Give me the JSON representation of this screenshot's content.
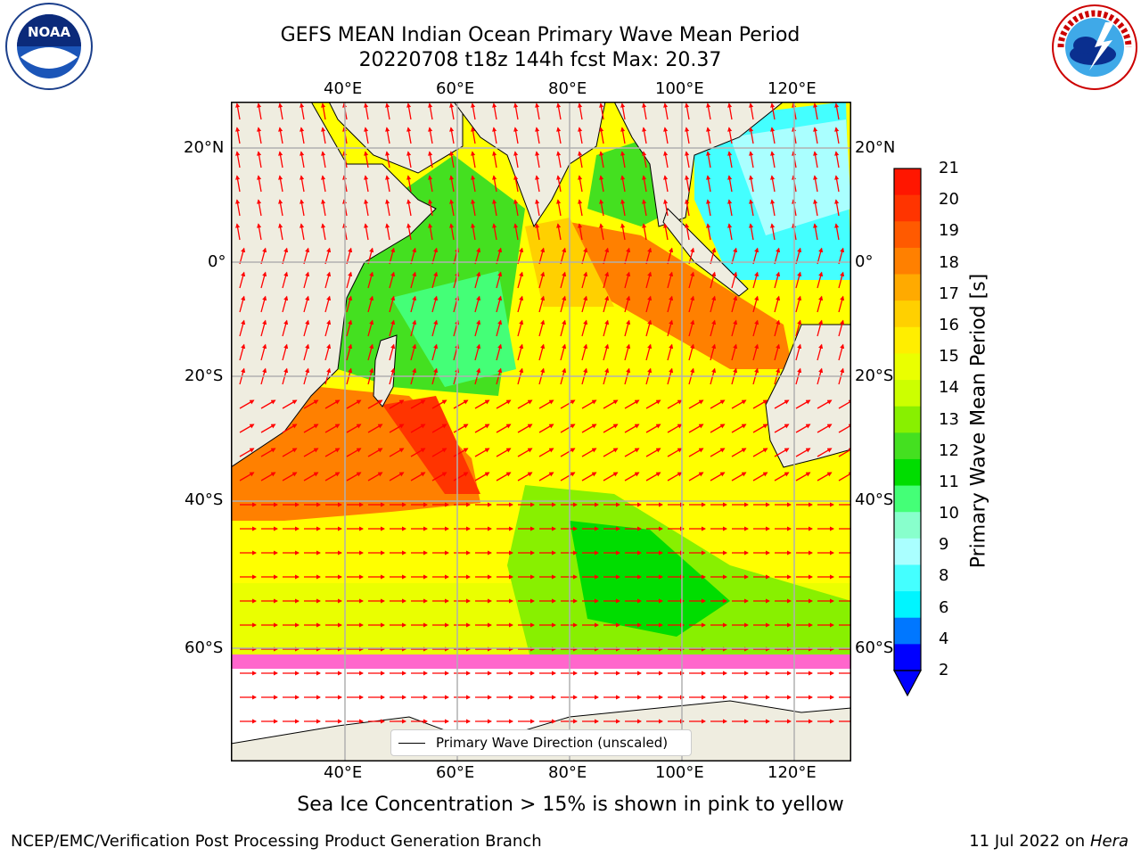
{
  "header": {
    "title_line1": "GEFS MEAN Indian Ocean Primary Wave Mean Period",
    "title_line2": "20220708 t18z 144h fcst   Max: 20.37"
  },
  "map": {
    "lon_ticks": [
      "40°E",
      "60°E",
      "80°E",
      "100°E",
      "120°E"
    ],
    "lat_ticks_left": [
      "20°N",
      "0°",
      "20°S",
      "40°S",
      "60°S"
    ],
    "lat_ticks_right": [
      "20°N",
      "0°",
      "20°S",
      "40°S",
      "60°S"
    ],
    "legend_label": "Primary Wave Direction (unscaled)",
    "land_color": "#efede0",
    "arrow_color": "#ff0000"
  },
  "colorbar": {
    "label": "Primary Wave Mean Period [s]",
    "ticks": [
      "21",
      "20",
      "19",
      "18",
      "17",
      "16",
      "15",
      "14",
      "13",
      "12",
      "11",
      "10",
      "9",
      "8",
      "6",
      "4",
      "2"
    ],
    "colors": [
      "#ff1600",
      "#ff3400",
      "#ff5a00",
      "#ff8000",
      "#ffaa00",
      "#ffd000",
      "#ffee00",
      "#eaff00",
      "#ccff00",
      "#88f000",
      "#44e020",
      "#00dd00",
      "#44ff77",
      "#88ffcc",
      "#aaffff",
      "#44ffff",
      "#00f5ff",
      "#0077ff",
      "#0000ff"
    ]
  },
  "subtitle": "Sea Ice Concentration > 15% is shown in pink to yellow",
  "footer": {
    "left": "NCEP/EMC/Verification Post Processing Product Generation Branch",
    "right_date": "11 Jul 2022 on ",
    "right_host": "Hera"
  },
  "logos": {
    "left": "noaa-logo",
    "right": "nws-logo"
  }
}
